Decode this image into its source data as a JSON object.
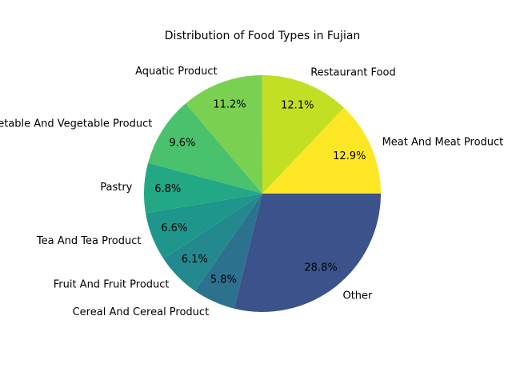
{
  "chart_data": {
    "type": "pie",
    "title": "Distribution of Food Types in Fujian",
    "categories": [
      "Meat And Meat Product",
      "Restaurant Food",
      "Aquatic Product",
      "Vegetable And Vegetable Product",
      "Pastry",
      "Tea And Tea Product",
      "Fruit And Fruit Product",
      "Cereal And Cereal Product",
      "Other"
    ],
    "values": [
      12.9,
      12.1,
      11.2,
      9.6,
      6.8,
      6.6,
      6.1,
      5.8,
      28.8
    ],
    "value_labels": [
      "12.9%",
      "12.1%",
      "11.2%",
      "9.6%",
      "6.8%",
      "6.6%",
      "6.1%",
      "5.8%",
      "28.8%"
    ],
    "colors": [
      "#fde725",
      "#c2df23",
      "#7ad151",
      "#4ac16d",
      "#22a884",
      "#1f968b",
      "#23898e",
      "#2c728e",
      "#3b528b"
    ],
    "start_angle_deg": 0,
    "direction": "counterclockwise",
    "legend": "none"
  }
}
